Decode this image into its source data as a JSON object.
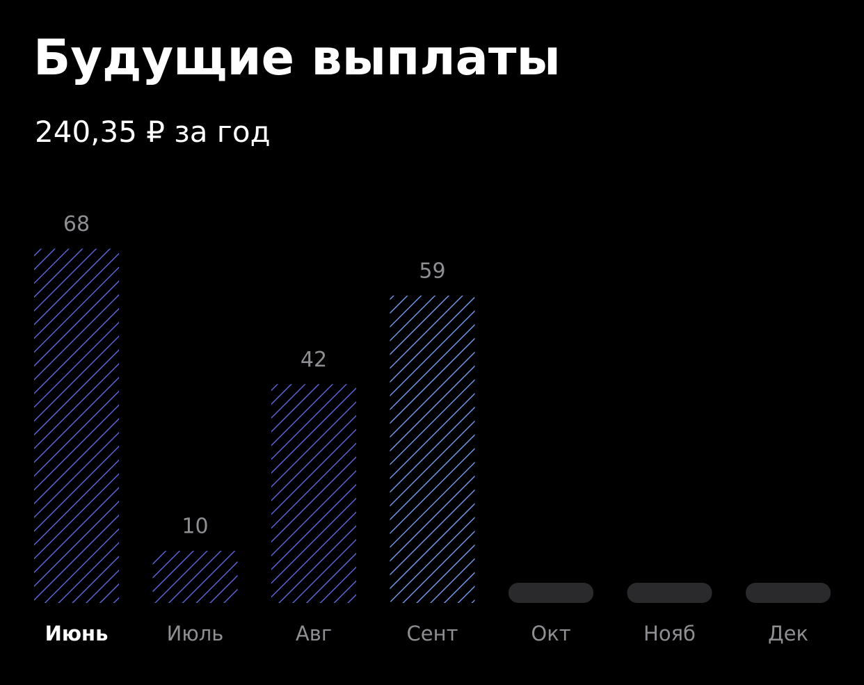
{
  "chart_data": {
    "type": "bar",
    "title": "Будущие выплаты",
    "subtitle": "240,35 ₽ за год",
    "categories": [
      "Июнь",
      "Июль",
      "Авг",
      "Сент",
      "Окт",
      "Нояб",
      "Дек"
    ],
    "values": [
      68,
      10,
      42,
      59,
      null,
      null,
      null
    ],
    "colors": [
      "#5c63d6",
      "#5c63d6",
      "#5c63d6",
      "#6f96e6",
      null,
      null,
      null
    ]
  }
}
